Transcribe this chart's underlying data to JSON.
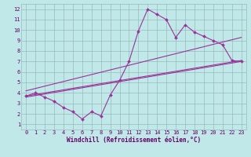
{
  "title": "",
  "xlabel": "Windchill (Refroidissement éolien,°C)",
  "bg_color": "#c0e8e8",
  "line_color": "#993399",
  "grid_color": "#99bbbb",
  "xmin": -0.5,
  "xmax": 23.5,
  "ymin": 0.5,
  "ymax": 12.5,
  "zigzag_x": [
    0,
    1,
    2,
    3,
    4,
    5,
    6,
    7,
    8,
    9,
    10,
    11,
    12,
    13,
    14,
    15,
    16,
    17,
    18,
    19,
    20,
    21,
    22,
    23
  ],
  "zigzag_y": [
    3.7,
    4.0,
    3.6,
    3.2,
    2.6,
    2.2,
    1.5,
    2.2,
    1.8,
    3.8,
    5.2,
    7.0,
    9.9,
    12.0,
    11.5,
    11.0,
    9.3,
    10.5,
    9.8,
    9.4,
    9.0,
    8.6,
    7.1,
    7.0
  ],
  "line1_x": [
    0,
    23
  ],
  "line1_y": [
    3.7,
    7.1
  ],
  "line2_x": [
    0,
    23
  ],
  "line2_y": [
    4.2,
    9.3
  ],
  "line3_x": [
    0,
    23
  ],
  "line3_y": [
    3.6,
    7.0
  ],
  "xticks": [
    0,
    1,
    2,
    3,
    4,
    5,
    6,
    7,
    8,
    9,
    10,
    11,
    12,
    13,
    14,
    15,
    16,
    17,
    18,
    19,
    20,
    21,
    22,
    23
  ],
  "yticks": [
    1,
    2,
    3,
    4,
    5,
    6,
    7,
    8,
    9,
    10,
    11,
    12
  ],
  "tick_fontsize": 5.0,
  "xlabel_fontsize": 5.5,
  "tick_color": "#660066",
  "xlabel_color": "#660066"
}
